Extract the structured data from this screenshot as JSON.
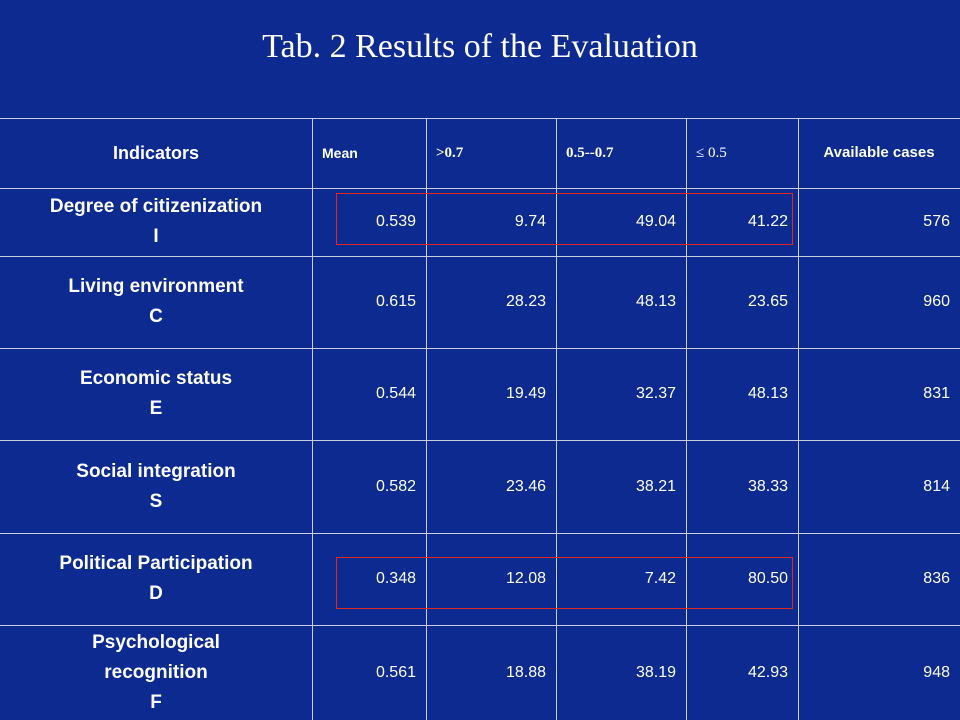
{
  "title": "Tab. 2 Results of the Evaluation",
  "table": {
    "header": [
      "Indicators",
      "Mean",
      ">0.7",
      "0.5--0.7",
      "≤ 0.5",
      "Available cases"
    ],
    "rows": [
      {
        "lines": [
          "Degree of citizenization",
          "I"
        ],
        "values": [
          "0.539",
          "9.74",
          "49.04",
          "41.22",
          "576"
        ]
      },
      {
        "lines": [
          "Living environment",
          "C"
        ],
        "values": [
          "0.615",
          "28.23",
          "48.13",
          "23.65",
          "960"
        ]
      },
      {
        "lines": [
          "Economic status",
          "E"
        ],
        "values": [
          "0.544",
          "19.49",
          "32.37",
          "48.13",
          "831"
        ]
      },
      {
        "lines": [
          "Social integration",
          "S"
        ],
        "values": [
          "0.582",
          "23.46",
          "38.21",
          "38.33",
          "814"
        ]
      },
      {
        "lines": [
          "Political Participation",
          "D"
        ],
        "values": [
          "0.348",
          "12.08",
          "7.42",
          "80.50",
          "836"
        ]
      },
      {
        "lines": [
          "Psychological",
          "recognition",
          "F"
        ],
        "values": [
          "0.561",
          "18.88",
          "38.19",
          "42.93",
          "948"
        ]
      }
    ]
  }
}
